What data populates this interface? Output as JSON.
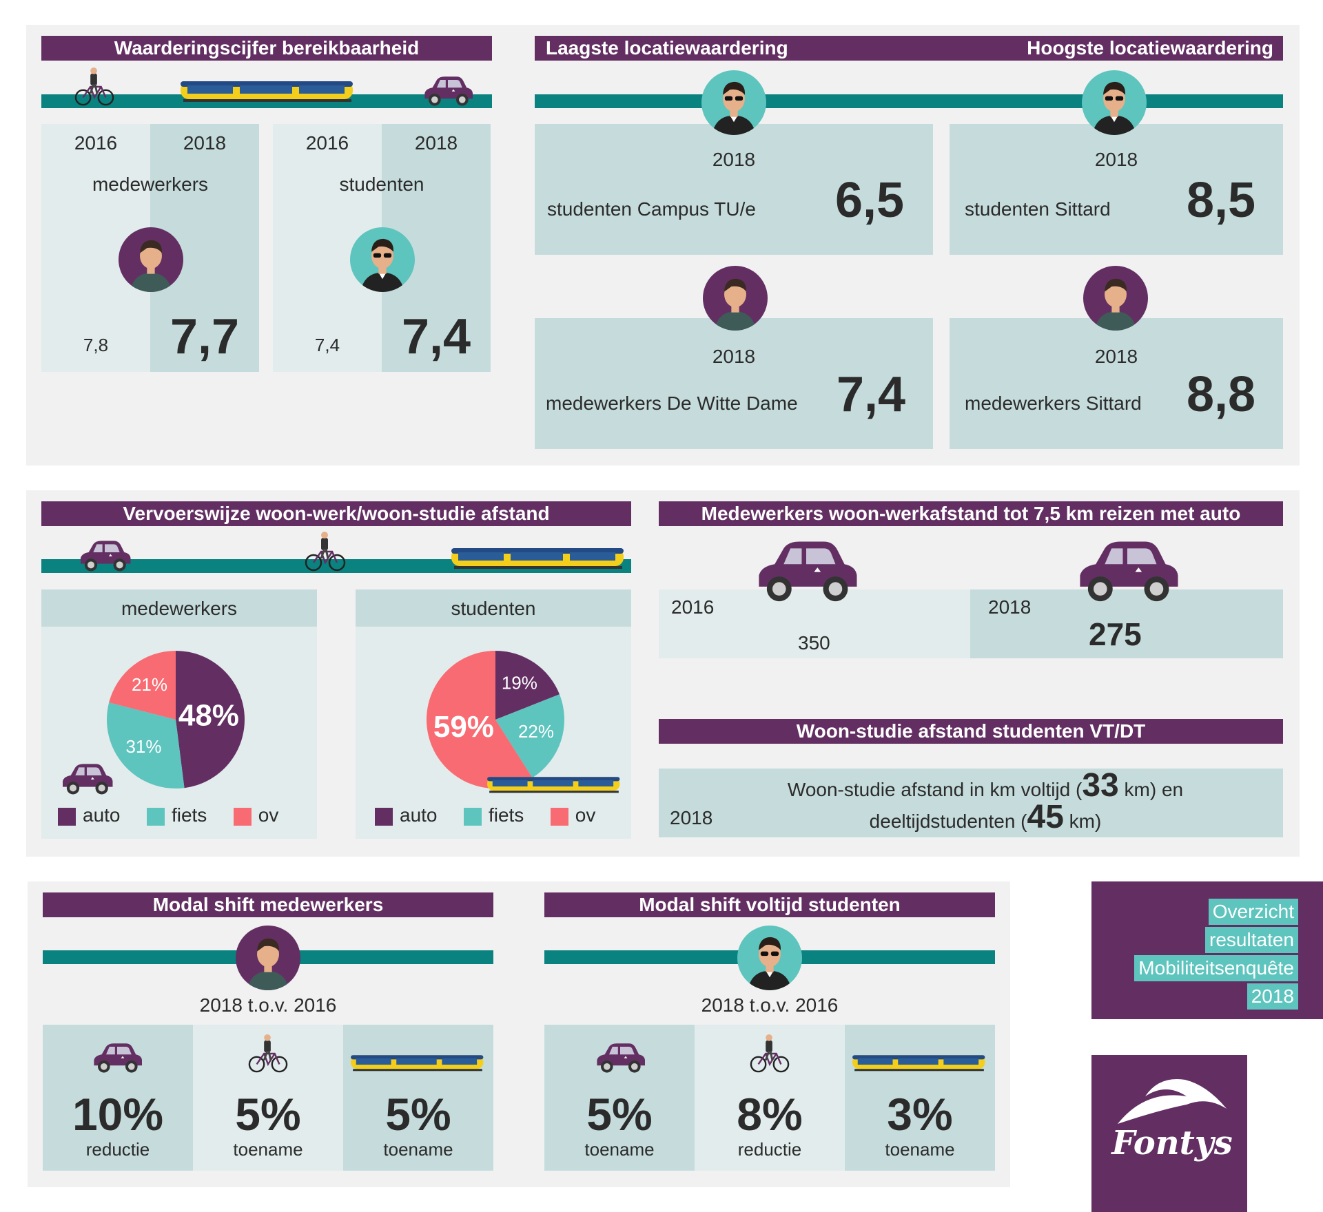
{
  "colors": {
    "purple": "#632f63",
    "teal": "#0a8280",
    "light_teal": "#5ec4be",
    "red": "#f96b72",
    "box_dark": "#c6dcdc",
    "box_light": "#e2ecec"
  },
  "icons": [
    "cyclist-icon",
    "train-icon",
    "car-icon",
    "employee-avatar-icon",
    "student-avatar-icon",
    "fontys-logo"
  ],
  "section1": {
    "title": "Waarderingscijfer bereikbaarheid",
    "employees": {
      "year_a": "2016",
      "year_b": "2018",
      "label": "medewerkers",
      "value_a": "7,8",
      "value_b": "7,7"
    },
    "students": {
      "year_a": "2016",
      "year_b": "2018",
      "label": "studenten",
      "value_a": "7,4",
      "value_b": "7,4"
    }
  },
  "section2": {
    "low_title": "Laagste locatiewaardering",
    "high_title": "Hoogste locatiewaardering",
    "cards": [
      {
        "year": "2018",
        "label": "studenten Campus TU/e",
        "value": "6,5"
      },
      {
        "year": "2018",
        "label": "studenten Sittard",
        "value": "8,5"
      },
      {
        "year": "2018",
        "label": "medewerkers De Witte Dame",
        "value": "7,4"
      },
      {
        "year": "2018",
        "label": "medewerkers Sittard",
        "value": "8,8"
      }
    ]
  },
  "section3": {
    "title": "Vervoerswijze woon-werk/woon-studie afstand",
    "employees_label": "medewerkers",
    "students_label": "studenten",
    "legend": [
      "auto",
      "fiets",
      "ov"
    ]
  },
  "chart_data": [
    {
      "type": "pie",
      "title": "medewerkers",
      "categories": [
        "auto",
        "fiets",
        "ov"
      ],
      "values": [
        48,
        31,
        21
      ],
      "labels": [
        "48%",
        "31%",
        "21%"
      ]
    },
    {
      "type": "pie",
      "title": "studenten",
      "categories": [
        "auto",
        "fiets",
        "ov"
      ],
      "values": [
        19,
        22,
        59
      ],
      "labels": [
        "19%",
        "22%",
        "59%"
      ]
    }
  ],
  "section4": {
    "title": "Medewerkers woon-werkafstand tot 7,5 km reizen met auto",
    "year_a": "2016",
    "value_a": "350",
    "year_b": "2018",
    "value_b": "275"
  },
  "section5": {
    "title": "Woon-studie afstand studenten VT/DT",
    "year": "2018",
    "line1_pre": "Woon-studie afstand in km voltijd (",
    "line1_num": "33",
    "line1_post": " km) en",
    "line2_pre": "deeltijdstudenten (",
    "line2_num": "45",
    "line2_post": " km)"
  },
  "section6": {
    "title": "Modal shift medewerkers",
    "subtitle": "2018 t.o.v. 2016",
    "items": [
      {
        "value": "10%",
        "label": "reductie"
      },
      {
        "value": "5%",
        "label": "toename"
      },
      {
        "value": "5%",
        "label": "toename"
      }
    ]
  },
  "section7": {
    "title": "Modal shift voltijd studenten",
    "subtitle": "2018 t.o.v. 2016",
    "items": [
      {
        "value": "5%",
        "label": "toename"
      },
      {
        "value": "8%",
        "label": "reductie"
      },
      {
        "value": "3%",
        "label": "toename"
      }
    ]
  },
  "overview": {
    "lines": [
      "Overzicht",
      "resultaten",
      "Mobiliteitsenquête",
      "2018"
    ]
  },
  "logo": {
    "text": "Fontys"
  }
}
